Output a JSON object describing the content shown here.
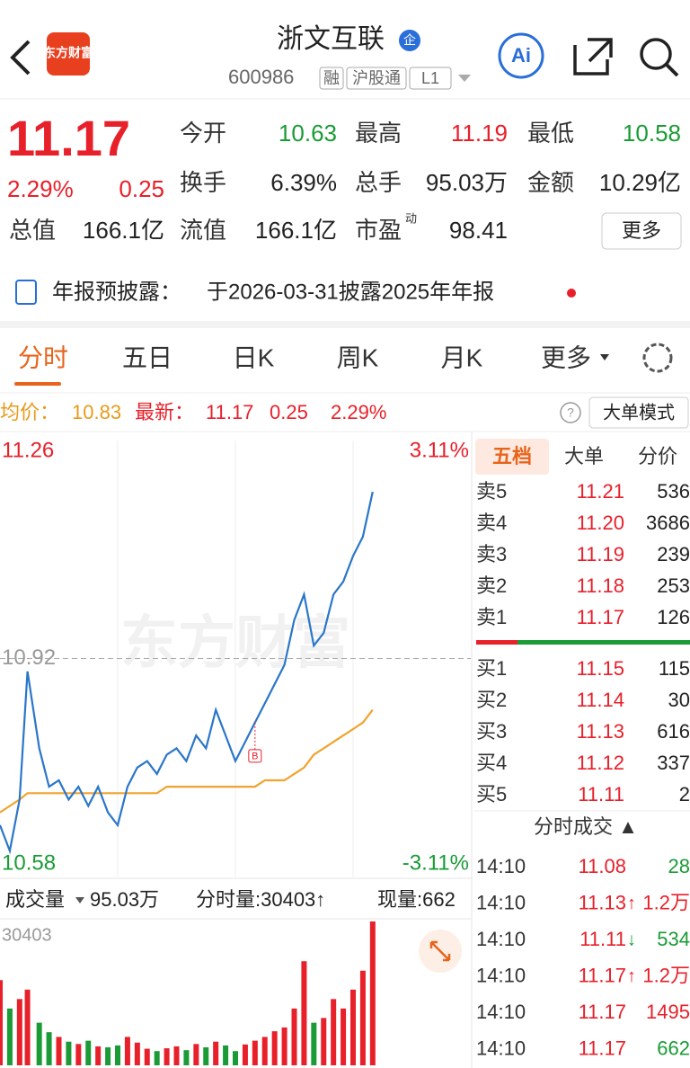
{
  "header": {
    "logo": "东方财富",
    "title": "浙文互联",
    "badge": "企",
    "code": "600986",
    "tags": [
      "融",
      "沪股通",
      "L1"
    ],
    "ai": "Ai"
  },
  "quote": {
    "price": "11.17",
    "pct": "2.29%",
    "change": "0.25",
    "stats": [
      {
        "label": "今开",
        "value": "10.63"
      },
      {
        "label": "最高",
        "value": "11.19"
      },
      {
        "label": "最低",
        "value": "10.58"
      },
      {
        "label": "换手",
        "value": "6.39%"
      },
      {
        "label": "总手",
        "value": "95.03万"
      },
      {
        "label": "金额",
        "value": "10.29亿"
      },
      {
        "label": "总值",
        "value": "166.1亿"
      },
      {
        "label": "流值",
        "value": "166.1亿"
      },
      {
        "label": "市盈",
        "sup": "动",
        "value": "98.41"
      }
    ],
    "more": "更多"
  },
  "notice": {
    "title": "年报预披露：",
    "text": "于2026-03-31披露2025年年报"
  },
  "tabs": [
    "分时",
    "五日",
    "日K",
    "周K",
    "月K",
    "更多"
  ],
  "info": {
    "avg_label": "均价：",
    "avg": "10.83",
    "latest_label": "最新：",
    "latest": "11.17",
    "change": "0.25",
    "pct": "2.29%",
    "mode": "大单模式"
  },
  "watermark": "东方财富",
  "chart_data": [
    {
      "type": "line",
      "xlim": [
        0,
        240
      ],
      "xticks": [
        60,
        120,
        180
      ],
      "ylim": [
        10.58,
        11.26
      ],
      "yticks": [
        10.58,
        10.92,
        11.26
      ],
      "y2lim": [
        -3.11,
        3.11
      ],
      "y2ticks": [
        {
          "value": -3.11,
          "label": "-3.11%"
        },
        {
          "value": 3.11,
          "label": "3.11%"
        }
      ],
      "x": [
        0,
        5,
        10,
        14,
        20,
        25,
        30,
        35,
        40,
        45,
        50,
        55,
        60,
        65,
        70,
        75,
        80,
        85,
        90,
        95,
        100,
        105,
        110,
        115,
        120,
        125,
        130,
        135,
        140,
        145,
        150,
        155,
        160,
        165,
        170,
        175,
        180,
        185,
        190
      ],
      "series": [
        {
          "name": "价格",
          "color": "#2a76c9",
          "values": [
            10.66,
            10.62,
            10.7,
            10.9,
            10.78,
            10.72,
            10.73,
            10.7,
            10.72,
            10.69,
            10.72,
            10.68,
            10.66,
            10.72,
            10.75,
            10.76,
            10.74,
            10.77,
            10.78,
            10.76,
            10.8,
            10.78,
            10.84,
            10.8,
            10.76,
            10.79,
            10.82,
            10.85,
            10.88,
            10.91,
            10.98,
            11.02,
            10.94,
            10.96,
            11.02,
            11.04,
            11.08,
            11.11,
            11.18
          ]
        },
        {
          "name": "均价",
          "color": "#f0a32e",
          "values": [
            10.68,
            10.69,
            10.7,
            10.71,
            10.71,
            10.71,
            10.71,
            10.71,
            10.71,
            10.71,
            10.71,
            10.71,
            10.71,
            10.71,
            10.71,
            10.71,
            10.71,
            10.72,
            10.72,
            10.72,
            10.72,
            10.72,
            10.72,
            10.72,
            10.72,
            10.72,
            10.72,
            10.73,
            10.73,
            10.73,
            10.74,
            10.75,
            10.77,
            10.78,
            10.79,
            10.8,
            10.81,
            10.82,
            10.84
          ]
        }
      ],
      "annotations": [
        {
          "x": 130,
          "label": "B"
        }
      ]
    },
    {
      "type": "bar",
      "title": "成交量",
      "total": "95.03万",
      "minute_label": "分时量:30403↑",
      "current_label": "现量:662",
      "xlim": [
        0,
        240
      ],
      "ylim": [
        0,
        30403
      ],
      "yticks": [
        30403
      ],
      "up_color": "#e8202a",
      "down_color": "#1a9b36",
      "x": [
        0,
        5,
        10,
        14,
        20,
        25,
        30,
        35,
        40,
        45,
        50,
        55,
        60,
        65,
        70,
        75,
        80,
        85,
        90,
        95,
        100,
        105,
        110,
        115,
        120,
        125,
        130,
        135,
        140,
        145,
        150,
        155,
        160,
        165,
        170,
        175,
        180,
        185,
        190
      ],
      "values": [
        18000,
        12000,
        14000,
        16000,
        9000,
        7000,
        6000,
        5000,
        4500,
        5200,
        4000,
        3800,
        4200,
        6000,
        4800,
        3500,
        3000,
        3600,
        4000,
        3200,
        4500,
        3800,
        5000,
        4200,
        3000,
        4400,
        5200,
        6000,
        7200,
        8000,
        12000,
        22000,
        9000,
        10000,
        14000,
        12000,
        16000,
        20000,
        30403
      ]
    }
  ],
  "order_book": {
    "tabs": [
      "五档",
      "大单",
      "分价"
    ],
    "asks": [
      {
        "label": "卖5",
        "price": "11.21",
        "volume": "536"
      },
      {
        "label": "卖4",
        "price": "11.20",
        "volume": "3686"
      },
      {
        "label": "卖3",
        "price": "11.19",
        "volume": "239"
      },
      {
        "label": "卖2",
        "price": "11.18",
        "volume": "253"
      },
      {
        "label": "卖1",
        "price": "11.17",
        "volume": "126"
      }
    ],
    "bids": [
      {
        "label": "买1",
        "price": "11.15",
        "volume": "115"
      },
      {
        "label": "买2",
        "price": "11.14",
        "volume": "30"
      },
      {
        "label": "买3",
        "price": "11.13",
        "volume": "616"
      },
      {
        "label": "买4",
        "price": "11.12",
        "volume": "337"
      },
      {
        "label": "买5",
        "price": "11.11",
        "volume": "2"
      }
    ]
  },
  "trades": {
    "title": "分时成交 ▲",
    "rows": [
      {
        "time": "14:10",
        "price": "11.08",
        "arrow": "",
        "volume": "28",
        "color": "#1a9b36"
      },
      {
        "time": "14:10",
        "price": "11.13",
        "arrow": "↑",
        "volume": "1.2万",
        "color": "#e8202a"
      },
      {
        "time": "14:10",
        "price": "11.11",
        "arrow": "↓",
        "volume": "534",
        "color": "#1a9b36"
      },
      {
        "time": "14:10",
        "price": "11.17",
        "arrow": "↑",
        "volume": "1.2万",
        "color": "#e8202a"
      },
      {
        "time": "14:10",
        "price": "11.17",
        "arrow": "",
        "volume": "1495",
        "color": "#e8202a"
      },
      {
        "time": "14:10",
        "price": "11.17",
        "arrow": "",
        "volume": "662",
        "color": "#1a9b36"
      }
    ]
  }
}
